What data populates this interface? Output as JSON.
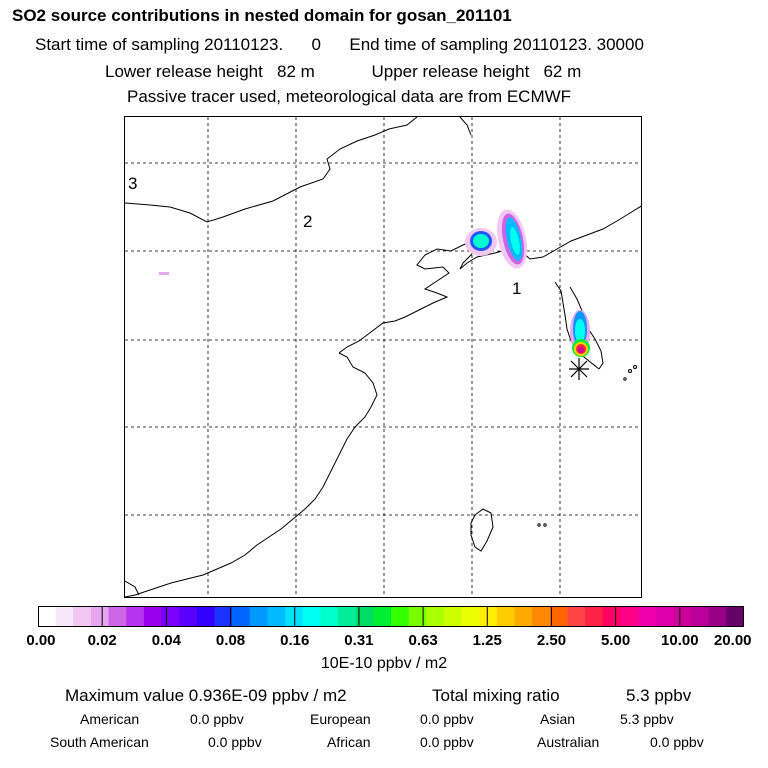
{
  "header": {
    "title": "SO2 source contributions in nested domain for gosan_201101",
    "sampling_line": "Start time of sampling 20110123.      0      End time of sampling 20110123. 30000",
    "release_line": "Lower release height   82 m            Upper release height   62 m",
    "tracer_line": "Passive tracer used, meteorological data are from ECMWF"
  },
  "map": {
    "region_labels": [
      "1",
      "2",
      "3"
    ],
    "station_marker": "receptor-asterisk"
  },
  "colorbar": {
    "tick_labels": [
      "0.00",
      "0.02",
      "0.04",
      "0.08",
      "0.16",
      "0.31",
      "0.63",
      "1.25",
      "2.50",
      "5.00",
      "10.00",
      "20.00"
    ],
    "units": "10E-10 ppbv / m2",
    "colors": [
      "#ffffff",
      "#fae6fa",
      "#f2c8f2",
      "#e6a6f0",
      "#cc66e6",
      "#b833ee",
      "#9900ee",
      "#7a00ff",
      "#5a00ff",
      "#3300ff",
      "#1a33ff",
      "#0066ff",
      "#0099ff",
      "#00bbff",
      "#00e0ff",
      "#00ffee",
      "#00ffcc",
      "#00ee99",
      "#00dd66",
      "#00ee33",
      "#33ff00",
      "#77ff00",
      "#aaff00",
      "#ccff00",
      "#eeff00",
      "#ffee00",
      "#ffcc00",
      "#ffaa00",
      "#ff8800",
      "#ff6600",
      "#ff4444",
      "#ff2244",
      "#ff0066",
      "#ff0088",
      "#ee00aa",
      "#dd00aa",
      "#cc0099",
      "#bb0099",
      "#990088",
      "#660066"
    ]
  },
  "summary": {
    "max_value": "Maximum value  0.936E-09 ppbv / m2",
    "total_label": "Total mixing ratio",
    "total_value": "5.3 ppbv",
    "contributions": [
      {
        "name": "American",
        "value": "0.0 ppbv"
      },
      {
        "name": "European",
        "value": "0.0 ppbv"
      },
      {
        "name": "Asian",
        "value": "5.3 ppbv"
      },
      {
        "name": "South American",
        "value": "0.0 ppbv"
      },
      {
        "name": "African",
        "value": "0.0 ppbv"
      },
      {
        "name": "Australian",
        "value": "0.0 ppbv"
      }
    ]
  }
}
